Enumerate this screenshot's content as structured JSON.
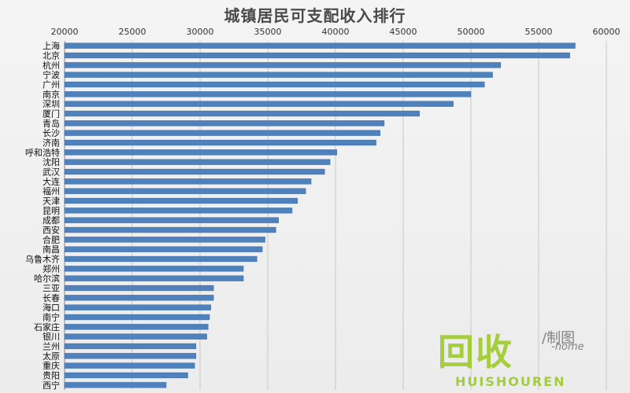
{
  "chart_data": {
    "type": "bar",
    "orientation": "horizontal",
    "title": "城镇居民可支配收入排行",
    "xlabel": "",
    "ylabel": "",
    "xlim": [
      20000,
      60000
    ],
    "x_ticks": [
      20000,
      25000,
      30000,
      35000,
      40000,
      45000,
      50000,
      55000,
      60000
    ],
    "x_axis_position": "top",
    "grid": true,
    "bar_color": "#4f81bd",
    "categories": [
      "上海",
      "北京",
      "杭州",
      "宁波",
      "广州",
      "南京",
      "深圳",
      "厦门",
      "青岛",
      "长沙",
      "济南",
      "呼和浩特",
      "沈阳",
      "武汉",
      "大连",
      "福州",
      "天津",
      "昆明",
      "成都",
      "西安",
      "合肥",
      "南昌",
      "乌鲁木齐",
      "郑州",
      "哈尔滨",
      "三亚",
      "长春",
      "海口",
      "南宁",
      "石家庄",
      "银川",
      "兰州",
      "太原",
      "重庆",
      "贵阳",
      "西宁"
    ],
    "values": [
      57700,
      57300,
      52200,
      51600,
      51000,
      50000,
      48700,
      46200,
      43600,
      43300,
      43000,
      40100,
      39600,
      39200,
      38200,
      37800,
      37200,
      36800,
      35800,
      35600,
      34800,
      34600,
      34200,
      33200,
      33200,
      31000,
      31000,
      30800,
      30700,
      30600,
      30500,
      29700,
      29700,
      29600,
      29100,
      27500
    ]
  },
  "watermark": {
    "cn": "回收",
    "en": "HUISHOUREN",
    "small_cn": "/制图",
    "small_en": "-home"
  }
}
